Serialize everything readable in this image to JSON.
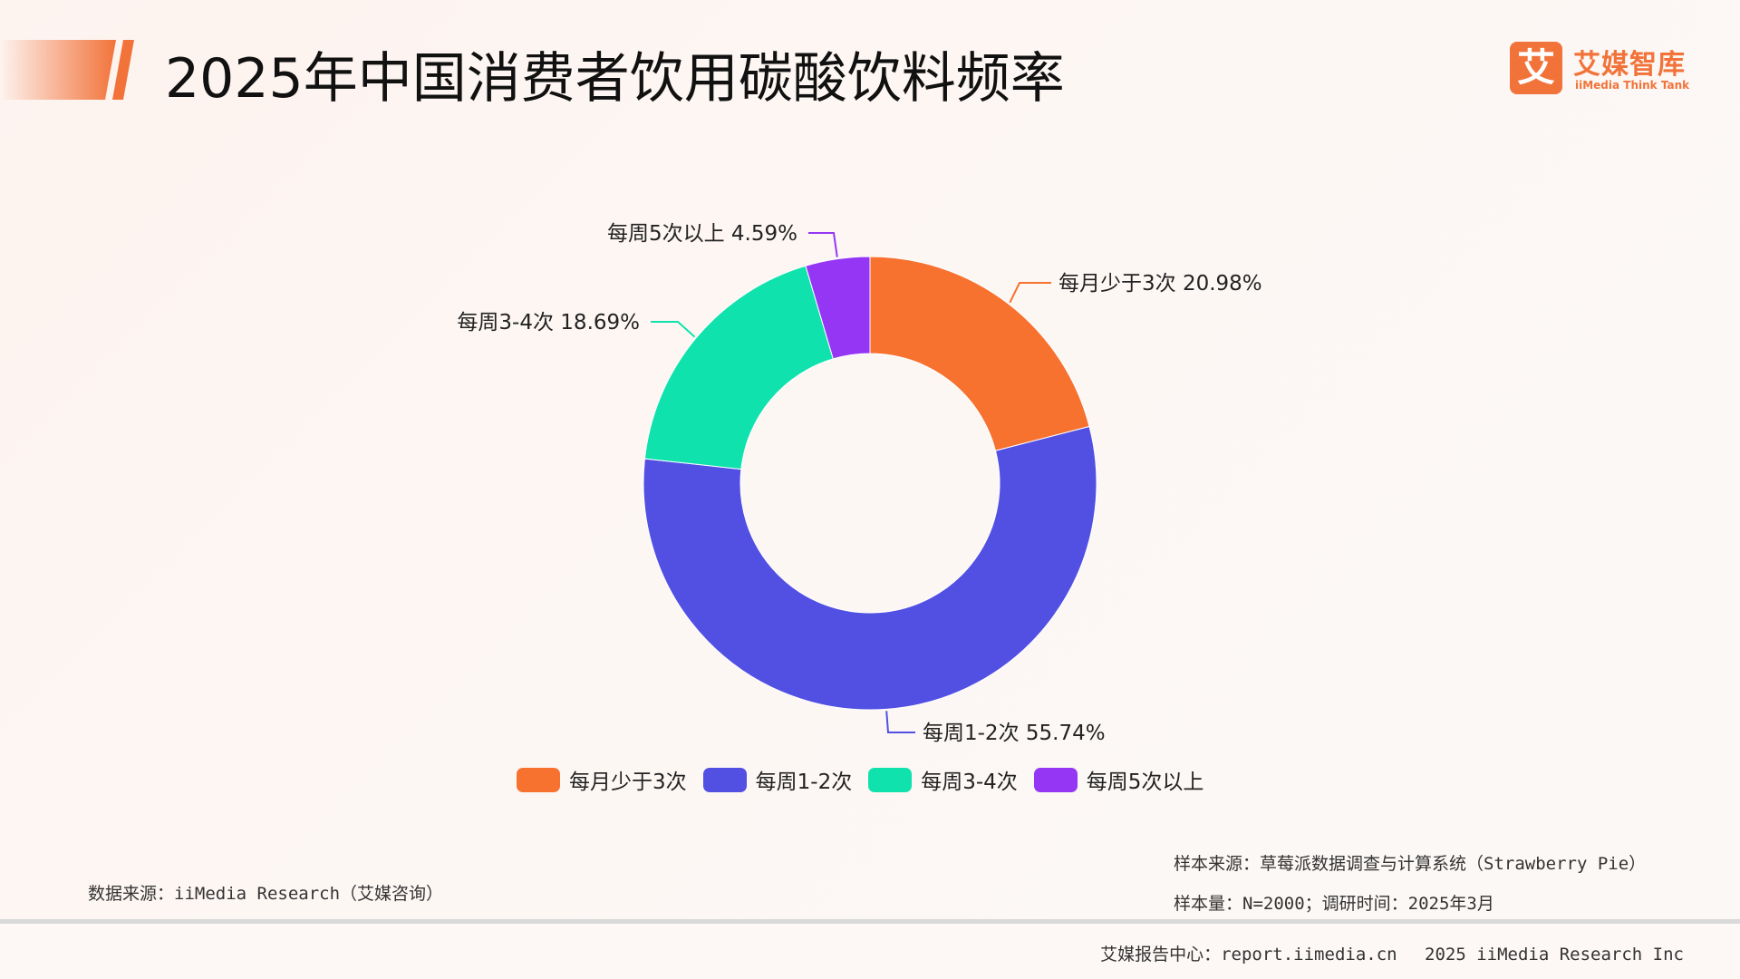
{
  "header": {
    "title": "2025年中国消费者饮用碳酸饮料频率",
    "accent_color": "#f2733a"
  },
  "logo": {
    "glyph": "艾",
    "name": "艾媒智库",
    "sub": "iiMedia Think Tank"
  },
  "chart_data": {
    "type": "pie",
    "donut": true,
    "title": "2025年中国消费者饮用碳酸饮料频率",
    "categories": [
      "每月少于3次",
      "每周1-2次",
      "每周3-4次",
      "每周5次以上"
    ],
    "values": [
      20.98,
      55.74,
      18.69,
      4.59
    ],
    "unit": "%",
    "colors": [
      "#f7712f",
      "#5250e3",
      "#0fe2ac",
      "#9536f5"
    ],
    "data_labels": [
      "每月少于3次 20.98%",
      "每周1-2次 55.74%",
      "每周3-4次 18.69%",
      "每周5次以上 4.59%"
    ],
    "legend_position": "bottom"
  },
  "legend": {
    "items": [
      {
        "label": "每月少于3次",
        "color": "#f7712f"
      },
      {
        "label": "每周1-2次",
        "color": "#5250e3"
      },
      {
        "label": "每周3-4次",
        "color": "#0fe2ac"
      },
      {
        "label": "每周5次以上",
        "color": "#9536f5"
      }
    ]
  },
  "notes": {
    "sample_source": "样本来源：草莓派数据调查与计算系统（Strawberry Pie）",
    "sample_size": "样本量：N=2000；调研时间：2025年3月",
    "data_source": "数据来源：iiMedia Research（艾媒咨询）"
  },
  "footer": {
    "text": "艾媒报告中心：report.iimedia.cn　 2025 iiMedia Research Inc"
  }
}
